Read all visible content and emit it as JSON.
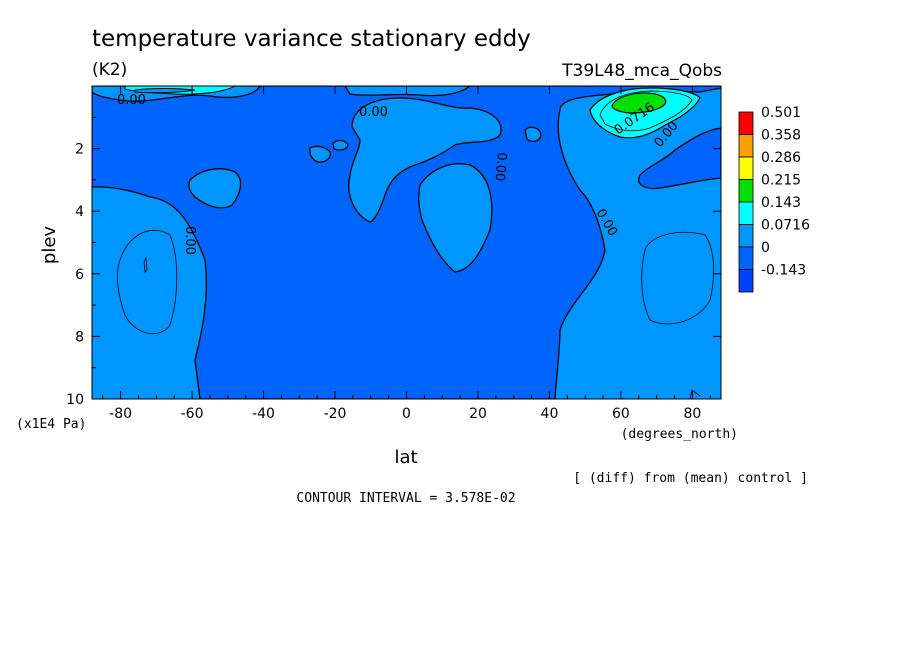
{
  "chart_data": {
    "type": "heatmap",
    "title": "temperature variance stationary eddy",
    "units": "(K2)",
    "experiment": "T39L48_mca_Qobs",
    "xlabel": "lat",
    "x_units": "(degrees_north)",
    "ylabel": "plev",
    "y_units": "(x1E4 Pa)",
    "xlim": [
      -88,
      88
    ],
    "ylim": [
      10,
      0
    ],
    "x_ticks": [
      "-80",
      "-60",
      "-40",
      "-20",
      "0",
      "20",
      "40",
      "60",
      "80"
    ],
    "x_tick_values": [
      -80,
      -60,
      -40,
      -20,
      0,
      20,
      40,
      60,
      80
    ],
    "y_ticks": [
      "2",
      "4",
      "6",
      "8",
      "10"
    ],
    "y_tick_values": [
      2,
      4,
      6,
      8,
      10
    ],
    "levels": [
      "0.501",
      "0.358",
      "0.286",
      "0.215",
      "0.143",
      "0.0716",
      "0",
      "-0.143"
    ],
    "level_colors": [
      "#ff0000",
      "#ffa000",
      "#ffff00",
      "#00e000",
      "#00ffff",
      "#0096ff",
      "#0064ff",
      "#0040ff"
    ],
    "contour_labels": [
      "0.00",
      "0.00",
      "0.00",
      "0.00",
      "0.00",
      "0.00",
      "0.0716",
      "0.00"
    ],
    "note": "[ (diff) from (mean) control ]",
    "contour_interval": "CONTOUR INTERVAL = 3.578E-02"
  }
}
